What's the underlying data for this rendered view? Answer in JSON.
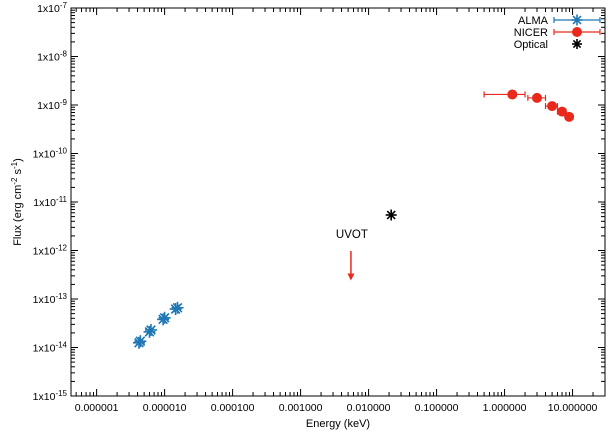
{
  "chart_data": {
    "type": "scatter",
    "xlabel": "Energy (keV)",
    "ylabel_parts": [
      "Flux (erg cm",
      "-2",
      " s",
      "-1",
      ")"
    ],
    "xscale": "log",
    "yscale": "log",
    "xlim": [
      4.2e-07,
      30
    ],
    "ylim": [
      1e-15,
      1e-07
    ],
    "grid": false,
    "legend_position": "top-right",
    "x_ticks": [
      1e-06,
      1e-05,
      0.0001,
      0.001,
      0.01,
      0.1,
      1,
      10
    ],
    "x_tick_labels": [
      "0.000001",
      "0.000010",
      "0.000100",
      "0.001000",
      "0.010000",
      "0.100000",
      "1.000000",
      "10.000000"
    ],
    "y_ticks": [
      1e-15,
      1e-14,
      1e-13,
      1e-12,
      1e-11,
      1e-10,
      1e-09,
      1e-08,
      1e-07
    ],
    "y_tick_labels": [
      {
        "base": "1x10",
        "exp": "-15"
      },
      {
        "base": "1x10",
        "exp": "-14"
      },
      {
        "base": "1x10",
        "exp": "-13"
      },
      {
        "base": "1x10",
        "exp": "-12"
      },
      {
        "base": "1x10",
        "exp": "-11"
      },
      {
        "base": "1x10",
        "exp": "-10"
      },
      {
        "base": "1x10",
        "exp": "-9"
      },
      {
        "base": "1x10",
        "exp": "-8"
      },
      {
        "base": "1x10",
        "exp": "-7"
      }
    ],
    "series": [
      {
        "name": "ALMA",
        "color": "#1f77b4",
        "marker": "asterisk",
        "points": [
          {
            "x": 4.2e-06,
            "y": 1.25e-14
          },
          {
            "x": 4.4e-06,
            "y": 1.35e-14
          },
          {
            "x": 6e-06,
            "y": 2.1e-14
          },
          {
            "x": 6.3e-06,
            "y": 2.3e-14
          },
          {
            "x": 9.5e-06,
            "y": 3.8e-14
          },
          {
            "x": 1e-05,
            "y": 4.1e-14
          },
          {
            "x": 1.45e-05,
            "y": 6.2e-14
          },
          {
            "x": 1.55e-05,
            "y": 6.6e-14
          }
        ]
      },
      {
        "name": "NICER",
        "color": "#e8291c",
        "marker": "circle",
        "points": [
          {
            "x": 1.3,
            "y": 1.65e-09,
            "xerr": [
              0.5,
              2.0
            ]
          },
          {
            "x": 3.0,
            "y": 1.4e-09,
            "xerr": [
              2.2,
              4.0
            ]
          },
          {
            "x": 5.0,
            "y": 9.5e-10,
            "xerr": [
              4.0,
              6.0
            ]
          },
          {
            "x": 7.0,
            "y": 7.3e-10,
            "xerr": [
              6.0,
              8.0
            ]
          },
          {
            "x": 8.9,
            "y": 5.7e-10,
            "xerr": [
              8.0,
              10.0
            ]
          }
        ]
      },
      {
        "name": "Optical",
        "color": "#000000",
        "marker": "asterisk",
        "points": [
          {
            "x": 0.0215,
            "y": 5.4e-12
          }
        ]
      }
    ],
    "upper_limit": {
      "label": "UVOT",
      "x": 0.0055,
      "y_top": 9.8e-13,
      "y_bottom": 2.4e-13,
      "color": "#e8291c"
    }
  }
}
